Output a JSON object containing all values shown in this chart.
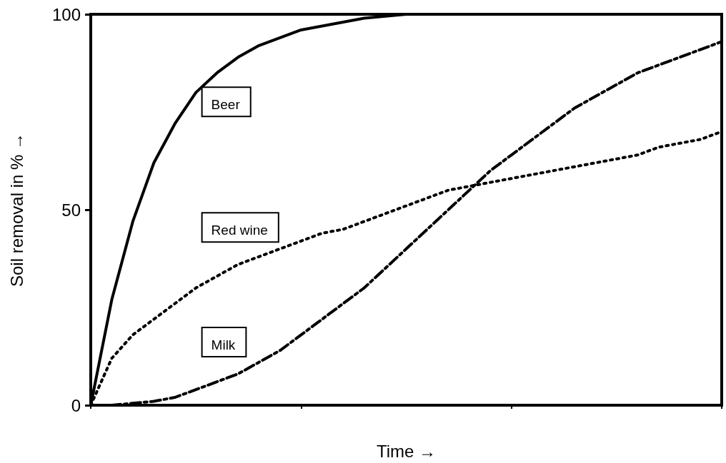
{
  "chart_data": {
    "type": "line",
    "xlabel": "Time →",
    "ylabel": "Soil removal in % →",
    "categories": [
      null,
      null,
      null,
      null,
      null,
      null,
      null,
      null,
      null,
      null,
      null,
      null,
      null,
      null,
      null,
      null,
      null,
      null,
      null,
      null,
      null,
      null,
      null,
      null,
      null,
      null,
      null,
      null,
      null,
      null,
      null
    ],
    "series": [
      {
        "name": "Beer",
        "color": "#000000",
        "line_style": "solid",
        "values": [
          0,
          27,
          47,
          62,
          72,
          80,
          85,
          89,
          92,
          94,
          96,
          97,
          98,
          99,
          99.5,
          100,
          100,
          100,
          100,
          100,
          100,
          100,
          100,
          100,
          100,
          100,
          100,
          100,
          100,
          100,
          100
        ]
      },
      {
        "name": "Red wine",
        "color": "#000000",
        "line_style": "dotted",
        "values": [
          0,
          12,
          18,
          22,
          26,
          30,
          33,
          36,
          38,
          40,
          42,
          44,
          45,
          47,
          49,
          51,
          53,
          55,
          56,
          57,
          58,
          59,
          60,
          61,
          62,
          63,
          64,
          66,
          67,
          68,
          70
        ]
      },
      {
        "name": "Milk",
        "color": "#000000",
        "line_style": "dashed",
        "values": [
          0,
          0,
          0.5,
          1,
          2,
          4,
          6,
          8,
          11,
          14,
          18,
          22,
          26,
          30,
          35,
          40,
          45,
          50,
          55,
          60,
          64,
          68,
          72,
          76,
          79,
          82,
          85,
          87,
          89,
          91,
          93
        ]
      }
    ],
    "ylim": [
      0,
      100
    ],
    "yticks": [
      0,
      50,
      100
    ],
    "grid": false,
    "legend": false,
    "marker": "none"
  }
}
